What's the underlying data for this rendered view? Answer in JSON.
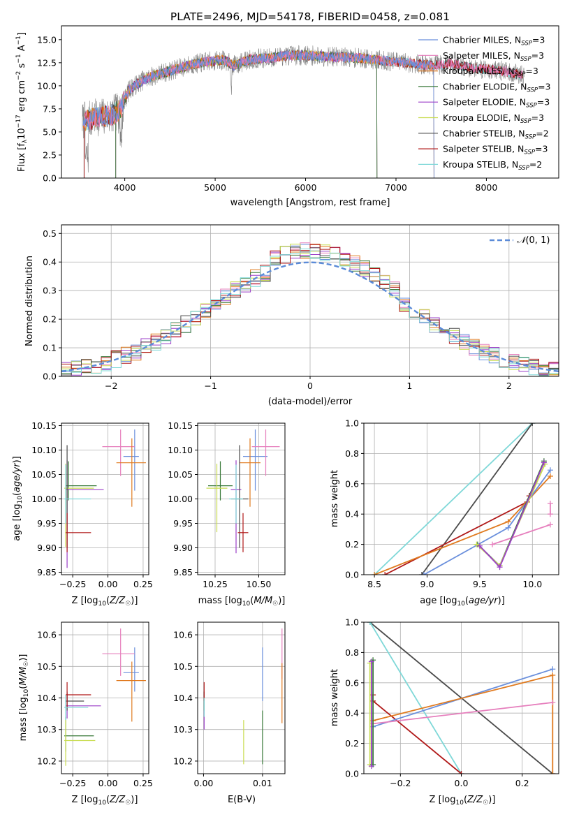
{
  "title": "PLATE=2496, MJD=54178, FIBERID=0458, z=0.081",
  "series_colors": {
    "Chabrier MILES": "#6a8fdc",
    "Salpeter MILES": "#e67fbd",
    "Kroupa MILES": "#e07a1f",
    "Chabrier ELODIE": "#3a7a3a",
    "Salpeter ELODIE": "#9b3fc8",
    "Kroupa ELODIE": "#c8dc50",
    "Chabrier STELIB": "#4a4a4a",
    "Salpeter STELIB": "#b01818",
    "Kroupa STELIB": "#7fd8d8",
    "data": "#808080"
  },
  "chart_data": [
    {
      "id": "spectrum",
      "type": "line",
      "title": "PLATE=2496, MJD=54178, FIBERID=0458, z=0.081",
      "xlabel": "wavelength [Angstrom, rest frame]",
      "ylabel": "Flux [f_λ 10^-17 erg cm^-2 s^-1 A^-1]",
      "xlim": [
        3300,
        8800
      ],
      "ylim": [
        0,
        16.5
      ],
      "xticks": [
        4000,
        5000,
        6000,
        7000,
        8000
      ],
      "yticks": [
        0.0,
        2.5,
        5.0,
        7.5,
        10.0,
        12.5,
        15.0
      ],
      "grid": false,
      "legend_position": "right",
      "legend": [
        {
          "name": "Chabrier MILES",
          "nssp": "3"
        },
        {
          "name": "Salpeter MILES",
          "nssp": "3"
        },
        {
          "name": "Kroupa MILES",
          "nssp": "3"
        },
        {
          "name": "Chabrier ELODIE",
          "nssp": "3"
        },
        {
          "name": "Salpeter ELODIE",
          "nssp": "3"
        },
        {
          "name": "Kroupa ELODIE",
          "nssp": "3"
        },
        {
          "name": "Chabrier STELIB",
          "nssp": "2"
        },
        {
          "name": "Salpeter STELIB",
          "nssp": "3"
        },
        {
          "name": "Kroupa STELIB",
          "nssp": "2"
        }
      ],
      "continuum": {
        "x": [
          3550,
          3700,
          3850,
          3950,
          4050,
          4200,
          4350,
          4500,
          4700,
          4900,
          5100,
          5200,
          5400,
          5600,
          5800,
          6000,
          6200,
          6400,
          6600,
          6800,
          7000,
          7200,
          7400,
          7600,
          7800,
          8000,
          8200,
          8400
        ],
        "y": [
          6.2,
          6.6,
          6.8,
          7.4,
          9.6,
          10.6,
          11.2,
          11.6,
          12.2,
          12.6,
          12.8,
          12.2,
          12.9,
          13.0,
          13.3,
          13.3,
          13.2,
          13.1,
          13.0,
          12.8,
          12.6,
          12.4,
          12.2,
          12.4,
          12.0,
          11.8,
          11.6,
          11.1
        ]
      }
    },
    {
      "id": "residuals",
      "type": "histogram",
      "xlabel": "(data-model)/error",
      "ylabel": "Normed distribution",
      "xlim": [
        -2.5,
        2.5
      ],
      "ylim": [
        0,
        0.53
      ],
      "xticks": [
        -2,
        -1,
        0,
        1,
        2
      ],
      "yticks": [
        0.0,
        0.1,
        0.2,
        0.3,
        0.4,
        0.5
      ],
      "grid": true,
      "legend": [
        "N(0,1)"
      ],
      "legend_position": "top-right",
      "bin_width": 0.1
    },
    {
      "id": "age-vs-Z",
      "type": "errorbar",
      "xlabel": "Z [log10(Z/Z☉)]",
      "ylabel": "age [log10(age/yr)]",
      "xlim": [
        -0.33,
        0.29
      ],
      "ylim": [
        9.845,
        10.155
      ],
      "xticks": [
        -0.25,
        0.0,
        0.25
      ],
      "xticklabels": [
        "−0.25",
        "0.00",
        "0.25"
      ],
      "yticks": [
        9.85,
        9.9,
        9.95,
        10.0,
        10.05,
        10.1,
        10.15
      ],
      "yticklabels": [
        "9.85",
        "9.90",
        "9.95",
        "10.00",
        "10.05",
        "10.10",
        "10.15"
      ],
      "points": [
        {
          "series": "Chabrier MILES",
          "x": 0.19,
          "y": 10.087,
          "xerr": [
            0.08,
            0.03
          ],
          "yerr": [
            0.07,
            0.055
          ]
        },
        {
          "series": "Salpeter MILES",
          "x": 0.09,
          "y": 10.107,
          "xerr": [
            0.13,
            0.1
          ],
          "yerr": [
            0.06,
            0.035
          ]
        },
        {
          "series": "Kroupa MILES",
          "x": 0.17,
          "y": 10.074,
          "xerr": [
            0.11,
            0.1
          ],
          "yerr": [
            0.09,
            0.05
          ]
        },
        {
          "series": "Chabrier ELODIE",
          "x": -0.28,
          "y": 10.027,
          "xerr": [
            0.02,
            0.2
          ],
          "yerr": [
            0.03,
            0.05
          ]
        },
        {
          "series": "Salpeter ELODIE",
          "x": -0.29,
          "y": 10.019,
          "xerr": [
            0.01,
            0.26
          ],
          "yerr": [
            0.16,
            0.06
          ]
        },
        {
          "series": "Kroupa ELODIE",
          "x": -0.3,
          "y": 10.022,
          "xerr": [
            0.01,
            0.2
          ],
          "yerr": [
            0.12,
            0.05
          ]
        },
        {
          "series": "Chabrier STELIB",
          "x": -0.29,
          "y": 10.0,
          "xerr": [
            0.01,
            0.01
          ],
          "yerr": [
            0.1,
            0.11
          ]
        },
        {
          "series": "Salpeter STELIB",
          "x": -0.29,
          "y": 9.931,
          "xerr": [
            0.01,
            0.17
          ],
          "yerr": [
            0.04,
            0.04
          ]
        },
        {
          "series": "Kroupa STELIB",
          "x": -0.3,
          "y": 10.0,
          "xerr": [
            0.01,
            0.18
          ],
          "yerr": [
            0.05,
            0.07
          ]
        }
      ]
    },
    {
      "id": "age-vs-mass",
      "type": "errorbar",
      "xlabel": "mass [log10(M/M☉)]",
      "xlim": [
        10.15,
        10.65
      ],
      "ylim": [
        9.845,
        10.155
      ],
      "xticks": [
        10.25,
        10.5
      ],
      "xticklabels": [
        "10.25",
        "10.50"
      ],
      "yticks": [
        9.85,
        9.9,
        9.95,
        10.0,
        10.05,
        10.1,
        10.15
      ],
      "yticklabels": [
        "9.85",
        "9.90",
        "9.95",
        "10.00",
        "10.05",
        "10.10",
        "10.15"
      ],
      "points": [
        {
          "series": "Chabrier MILES",
          "x": 10.48,
          "y": 10.087,
          "xerr": [
            0.07,
            0.07
          ],
          "yerr": [
            0.07,
            0.055
          ]
        },
        {
          "series": "Salpeter MILES",
          "x": 10.54,
          "y": 10.107,
          "xerr": [
            0.08,
            0.08
          ],
          "yerr": [
            0.06,
            0.035
          ]
        },
        {
          "series": "Kroupa MILES",
          "x": 10.45,
          "y": 10.074,
          "xerr": [
            0.06,
            0.06
          ],
          "yerr": [
            0.09,
            0.05
          ]
        },
        {
          "series": "Chabrier ELODIE",
          "x": 10.28,
          "y": 10.027,
          "xerr": [
            0.07,
            0.07
          ],
          "yerr": [
            0.03,
            0.05
          ]
        },
        {
          "series": "Salpeter ELODIE",
          "x": 10.37,
          "y": 10.019,
          "xerr": [
            0.03,
            0.03
          ],
          "yerr": [
            0.13,
            0.06
          ]
        },
        {
          "series": "Kroupa ELODIE",
          "x": 10.26,
          "y": 10.022,
          "xerr": [
            0.06,
            0.06
          ],
          "yerr": [
            0.09,
            0.05
          ]
        },
        {
          "series": "Chabrier STELIB",
          "x": 10.39,
          "y": 10.0,
          "xerr": [
            0.05,
            0.05
          ],
          "yerr": [
            0.1,
            0.11
          ]
        },
        {
          "series": "Salpeter STELIB",
          "x": 10.41,
          "y": 9.931,
          "xerr": [
            0.03,
            0.03
          ],
          "yerr": [
            0.04,
            0.04
          ]
        },
        {
          "series": "Kroupa STELIB",
          "x": 10.37,
          "y": 10.0,
          "xerr": [
            0.04,
            0.04
          ],
          "yerr": [
            0.05,
            0.07
          ]
        }
      ]
    },
    {
      "id": "massweight-vs-age",
      "type": "line",
      "xlabel": "age [log10(age/yr)]",
      "ylabel": "mass weight",
      "xlim": [
        8.4,
        10.25
      ],
      "ylim": [
        0,
        1
      ],
      "xticks": [
        8.5,
        9.0,
        9.5,
        10.0
      ],
      "xticklabels": [
        "8.5",
        "9.0",
        "9.5",
        "10.0"
      ],
      "yticks": [
        0.0,
        0.2,
        0.4,
        0.6,
        0.8,
        1.0
      ],
      "yticklabels": [
        "0.0",
        "0.2",
        "0.4",
        "0.6",
        "0.8",
        "1.0"
      ],
      "grid": true,
      "series": [
        {
          "series": "Kroupa STELIB",
          "x": [
            8.5,
            10.0
          ],
          "y": [
            0.0,
            1.0
          ]
        },
        {
          "series": "Chabrier STELIB",
          "x": [
            8.95,
            10.0
          ],
          "y": [
            0.0,
            1.0
          ]
        },
        {
          "series": "Salpeter STELIB",
          "x": [
            8.6,
            9.95,
            9.97
          ],
          "y": [
            0.0,
            0.48,
            0.52
          ]
        },
        {
          "series": "Kroupa MILES",
          "x": [
            8.5,
            9.77,
            10.17
          ],
          "y": [
            0.0,
            0.35,
            0.65
          ]
        },
        {
          "series": "Chabrier MILES",
          "x": [
            8.97,
            9.77,
            10.17
          ],
          "y": [
            0.0,
            0.31,
            0.69
          ]
        },
        {
          "series": "Salpeter MILES",
          "x": [
            9.62,
            10.17
          ],
          "y": [
            0.2,
            0.33
          ]
        },
        {
          "series": "Salpeter MILES",
          "x": [
            10.17,
            10.17
          ],
          "y": [
            0.4,
            0.47
          ]
        },
        {
          "series": "Chabrier ELODIE",
          "x": [
            9.48,
            9.69,
            10.11
          ],
          "y": [
            0.2,
            0.06,
            0.75
          ]
        },
        {
          "series": "Kroupa ELODIE",
          "x": [
            9.47,
            9.69,
            10.12
          ],
          "y": [
            0.2,
            0.06,
            0.73
          ]
        },
        {
          "series": "Salpeter ELODIE",
          "x": [
            9.5,
            9.69,
            10.11
          ],
          "y": [
            0.19,
            0.05,
            0.74
          ]
        }
      ]
    },
    {
      "id": "mass-vs-Z",
      "type": "errorbar",
      "xlabel": "Z [log10(Z/Z☉)]",
      "ylabel": "mass [log10(M/M☉)]",
      "xlim": [
        -0.33,
        0.29
      ],
      "ylim": [
        10.16,
        10.64
      ],
      "xticks": [
        -0.25,
        0.0,
        0.25
      ],
      "xticklabels": [
        "−0.25",
        "0.00",
        "0.25"
      ],
      "yticks": [
        10.2,
        10.3,
        10.4,
        10.5,
        10.6
      ],
      "yticklabels": [
        "10.2",
        "10.3",
        "10.4",
        "10.5",
        "10.6"
      ],
      "points": [
        {
          "series": "Chabrier MILES",
          "x": 0.19,
          "y": 10.48,
          "xerr": [
            0.08,
            0.03
          ],
          "yerr": [
            0.06,
            0.08
          ]
        },
        {
          "series": "Salpeter MILES",
          "x": 0.09,
          "y": 10.54,
          "xerr": [
            0.13,
            0.1
          ],
          "yerr": [
            0.07,
            0.08
          ]
        },
        {
          "series": "Kroupa MILES",
          "x": 0.17,
          "y": 10.455,
          "xerr": [
            0.11,
            0.1
          ],
          "yerr": [
            0.13,
            0.06
          ]
        },
        {
          "series": "Chabrier ELODIE",
          "x": -0.3,
          "y": 10.28,
          "xerr": [
            0.01,
            0.2
          ],
          "yerr": [
            0.05,
            0.06
          ]
        },
        {
          "series": "Salpeter ELODIE",
          "x": -0.29,
          "y": 10.375,
          "xerr": [
            0.01,
            0.24
          ],
          "yerr": [
            0.04,
            0.04
          ]
        },
        {
          "series": "Kroupa ELODIE",
          "x": -0.3,
          "y": 10.265,
          "xerr": [
            0.01,
            0.21
          ],
          "yerr": [
            0.08,
            0.07
          ]
        },
        {
          "series": "Chabrier STELIB",
          "x": -0.29,
          "y": 10.39,
          "xerr": [
            0.01,
            0.12
          ],
          "yerr": [
            0.03,
            0.03
          ]
        },
        {
          "series": "Salpeter STELIB",
          "x": -0.29,
          "y": 10.41,
          "xerr": [
            0.01,
            0.17
          ],
          "yerr": [
            0.04,
            0.04
          ]
        },
        {
          "series": "Kroupa STELIB",
          "x": -0.3,
          "y": 10.37,
          "xerr": [
            0.01,
            0.16
          ],
          "yerr": [
            0.04,
            0.04
          ]
        }
      ]
    },
    {
      "id": "mass-vs-EBV",
      "type": "errorbar",
      "xlabel": "E(B-V)",
      "xlim": [
        -0.001,
        0.0138
      ],
      "ylim": [
        10.16,
        10.64
      ],
      "xticks": [
        0.0,
        0.01
      ],
      "xticklabels": [
        "0.00",
        "0.01"
      ],
      "yticks": [
        10.2,
        10.3,
        10.4,
        10.5,
        10.6
      ],
      "yticklabels": [
        "10.2",
        "10.3",
        "10.4",
        "10.5",
        "10.6"
      ],
      "points": [
        {
          "series": "Chabrier MILES",
          "x": 0.01,
          "y": 10.48,
          "xerr": [
            0,
            0
          ],
          "yerr": [
            0.09,
            0.08
          ]
        },
        {
          "series": "Salpeter MILES",
          "x": 0.0133,
          "y": 10.54,
          "xerr": [
            0,
            0
          ],
          "yerr": [
            0.08,
            0.08
          ]
        },
        {
          "series": "Kroupa MILES",
          "x": 0.0133,
          "y": 10.42,
          "xerr": [
            0,
            0
          ],
          "yerr": [
            0.1,
            0.09
          ]
        },
        {
          "series": "Chabrier ELODIE",
          "x": 0.01,
          "y": 10.28,
          "xerr": [
            0,
            0
          ],
          "yerr": [
            0.09,
            0.08
          ]
        },
        {
          "series": "Salpeter ELODIE",
          "x": 0.0001,
          "y": 10.33,
          "xerr": [
            0,
            0
          ],
          "yerr": [
            0.03,
            0.03
          ]
        },
        {
          "series": "Kroupa ELODIE",
          "x": 0.0068,
          "y": 10.26,
          "xerr": [
            0,
            0
          ],
          "yerr": [
            0.07,
            0.07
          ]
        },
        {
          "series": "Chabrier STELIB",
          "x": 0.0001,
          "y": 10.39,
          "xerr": [
            0,
            0
          ],
          "yerr": [
            0.03,
            0.03
          ]
        },
        {
          "series": "Salpeter STELIB",
          "x": 0.0001,
          "y": 10.42,
          "xerr": [
            0,
            0
          ],
          "yerr": [
            0.03,
            0.03
          ]
        },
        {
          "series": "Kroupa STELIB",
          "x": 0.0001,
          "y": 10.37,
          "xerr": [
            0,
            0
          ],
          "yerr": [
            0.03,
            0.03
          ]
        }
      ]
    },
    {
      "id": "massweight-vs-Z",
      "type": "line",
      "xlabel": "Z [log10(Z/Z☉)]",
      "ylabel": "mass weight",
      "xlim": [
        -0.32,
        0.32
      ],
      "ylim": [
        0,
        1
      ],
      "xticks": [
        -0.2,
        0.0,
        0.2
      ],
      "xticklabels": [
        "−0.2",
        "0.0",
        "0.2"
      ],
      "yticks": [
        0.0,
        0.2,
        0.4,
        0.6,
        0.8,
        1.0
      ],
      "yticklabels": [
        "0.0",
        "0.2",
        "0.4",
        "0.6",
        "0.8",
        "1.0"
      ],
      "grid": true,
      "series": [
        {
          "series": "Chabrier STELIB",
          "x": [
            -0.3,
            0.3
          ],
          "y": [
            1.0,
            0.0
          ]
        },
        {
          "series": "Kroupa STELIB",
          "x": [
            -0.3,
            0.0
          ],
          "y": [
            1.0,
            0.0
          ]
        },
        {
          "series": "Salpeter STELIB",
          "x": [
            -0.29,
            -0.29,
            0.0
          ],
          "y": [
            0.52,
            0.48,
            0.0
          ]
        },
        {
          "series": "Chabrier MILES",
          "x": [
            -0.29,
            0.3
          ],
          "y": [
            0.31,
            0.69
          ]
        },
        {
          "series": "Kroupa MILES",
          "x": [
            -0.29,
            0.3,
            0.3
          ],
          "y": [
            0.35,
            0.65,
            0.0
          ]
        },
        {
          "series": "Salpeter MILES",
          "x": [
            -0.29,
            0.3
          ],
          "y": [
            0.33,
            0.47
          ]
        },
        {
          "series": "Kroupa ELODIE",
          "x": [
            -0.3,
            -0.3
          ],
          "y": [
            0.06,
            0.73
          ]
        },
        {
          "series": "Chabrier ELODIE",
          "x": [
            -0.29,
            -0.29
          ],
          "y": [
            0.06,
            0.75
          ]
        },
        {
          "series": "Salpeter ELODIE",
          "x": [
            -0.295,
            -0.295
          ],
          "y": [
            0.05,
            0.74
          ]
        }
      ]
    }
  ]
}
